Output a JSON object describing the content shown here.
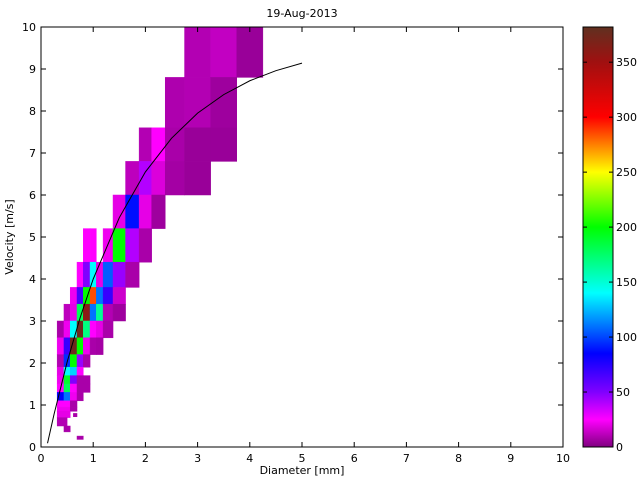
{
  "chart_data": {
    "type": "heatmap",
    "title": "19-Aug-2013",
    "xlabel": "Diameter [mm]",
    "ylabel": "Velocity [m/s]",
    "xlim": [
      0,
      10
    ],
    "ylim": [
      0,
      10
    ],
    "xticks": [
      "0",
      "1",
      "2",
      "3",
      "4",
      "5",
      "6",
      "7",
      "8",
      "9",
      "10"
    ],
    "yticks": [
      "0",
      "1",
      "2",
      "3",
      "4",
      "5",
      "6",
      "7",
      "8",
      "9",
      "10"
    ],
    "grid": false,
    "colorbar": {
      "range": [
        0,
        382
      ],
      "ticks": [
        "0",
        "50",
        "100",
        "150",
        "200",
        "250",
        "300",
        "350"
      ],
      "tick_values": [
        0,
        50,
        100,
        150,
        200,
        250,
        300,
        350
      ],
      "colormap": [
        [
          0,
          "#800080"
        ],
        [
          25,
          "#ff00ff"
        ],
        [
          50,
          "#8000ff"
        ],
        [
          85,
          "#0000ff"
        ],
        [
          140,
          "#00ffff"
        ],
        [
          200,
          "#00ff00"
        ],
        [
          250,
          "#ffff00"
        ],
        [
          300,
          "#ff0000"
        ],
        [
          350,
          "#a01010"
        ],
        [
          382,
          "#603020"
        ]
      ]
    },
    "cells_format": [
      "d_min",
      "d_max",
      "v_min",
      "v_max",
      "count"
    ],
    "cells": [
      [
        2.75,
        3.25,
        8.8,
        10,
        10
      ],
      [
        3.25,
        3.75,
        8.8,
        10,
        13
      ],
      [
        3.75,
        4.25,
        8.8,
        10,
        5
      ],
      [
        2.38,
        2.75,
        7.6,
        8.8,
        9
      ],
      [
        2.75,
        3.25,
        7.6,
        8.8,
        10
      ],
      [
        3.25,
        3.75,
        7.6,
        8.8,
        6
      ],
      [
        1.88,
        2.12,
        6.8,
        7.6,
        10
      ],
      [
        2.12,
        2.38,
        6.8,
        7.6,
        25
      ],
      [
        2.38,
        2.75,
        6.8,
        7.6,
        8
      ],
      [
        2.75,
        3.25,
        6.8,
        7.6,
        5
      ],
      [
        3.25,
        3.75,
        6.8,
        7.6,
        5
      ],
      [
        1.62,
        1.88,
        6.0,
        6.8,
        12
      ],
      [
        1.88,
        2.12,
        6.0,
        6.8,
        40
      ],
      [
        2.12,
        2.38,
        6.0,
        6.8,
        18
      ],
      [
        2.38,
        2.75,
        6.0,
        6.8,
        7
      ],
      [
        2.75,
        3.25,
        6.0,
        6.8,
        5
      ],
      [
        1.38,
        1.62,
        5.2,
        6.0,
        20
      ],
      [
        1.62,
        1.88,
        5.2,
        6.0,
        88
      ],
      [
        1.88,
        2.12,
        5.2,
        6.0,
        20
      ],
      [
        2.12,
        2.38,
        5.2,
        6.0,
        6
      ],
      [
        0.81,
        0.94,
        4.4,
        5.2,
        25
      ],
      [
        0.94,
        1.06,
        4.4,
        5.2,
        25
      ],
      [
        1.19,
        1.38,
        4.4,
        5.2,
        22
      ],
      [
        1.38,
        1.62,
        4.4,
        5.2,
        200
      ],
      [
        1.62,
        1.88,
        4.4,
        5.2,
        40
      ],
      [
        1.88,
        2.12,
        4.4,
        5.2,
        8
      ],
      [
        0.69,
        0.81,
        3.8,
        4.4,
        25
      ],
      [
        0.81,
        0.94,
        3.8,
        4.4,
        50
      ],
      [
        0.94,
        1.06,
        3.8,
        4.4,
        140
      ],
      [
        1.06,
        1.19,
        3.8,
        4.4,
        20
      ],
      [
        1.19,
        1.38,
        3.8,
        4.4,
        105
      ],
      [
        1.38,
        1.62,
        3.8,
        4.4,
        45
      ],
      [
        1.62,
        1.88,
        3.8,
        4.4,
        8
      ],
      [
        0.56,
        0.69,
        3.4,
        3.8,
        22
      ],
      [
        0.69,
        0.81,
        3.4,
        3.8,
        65
      ],
      [
        0.81,
        0.94,
        3.4,
        3.8,
        200
      ],
      [
        0.94,
        1.06,
        3.4,
        3.8,
        285
      ],
      [
        1.06,
        1.19,
        3.4,
        3.8,
        110
      ],
      [
        1.19,
        1.38,
        3.4,
        3.8,
        70
      ],
      [
        1.38,
        1.62,
        3.4,
        3.8,
        15
      ],
      [
        0.44,
        0.56,
        3.0,
        3.4,
        12
      ],
      [
        0.56,
        0.69,
        3.0,
        3.4,
        20
      ],
      [
        0.69,
        0.81,
        3.0,
        3.4,
        180
      ],
      [
        0.81,
        0.94,
        3.0,
        3.4,
        360
      ],
      [
        0.94,
        1.06,
        3.0,
        3.4,
        110
      ],
      [
        1.06,
        1.19,
        3.0,
        3.4,
        165
      ],
      [
        1.19,
        1.38,
        3.0,
        3.4,
        10
      ],
      [
        1.38,
        1.62,
        3.0,
        3.4,
        6
      ],
      [
        0.31,
        0.44,
        2.6,
        3.0,
        8
      ],
      [
        0.44,
        0.56,
        2.6,
        3.0,
        22
      ],
      [
        0.56,
        0.69,
        2.6,
        3.0,
        140
      ],
      [
        0.69,
        0.81,
        2.6,
        3.0,
        375
      ],
      [
        0.81,
        0.94,
        2.6,
        3.0,
        170
      ],
      [
        0.94,
        1.06,
        2.6,
        3.0,
        25
      ],
      [
        1.06,
        1.19,
        2.6,
        3.0,
        20
      ],
      [
        1.19,
        1.38,
        2.6,
        3.0,
        8
      ],
      [
        0.31,
        0.44,
        2.2,
        2.6,
        22
      ],
      [
        0.44,
        0.56,
        2.2,
        2.6,
        70
      ],
      [
        0.56,
        0.69,
        2.2,
        2.6,
        375
      ],
      [
        0.69,
        0.81,
        2.2,
        2.6,
        200
      ],
      [
        0.81,
        0.94,
        2.2,
        2.6,
        22
      ],
      [
        0.94,
        1.06,
        2.2,
        2.6,
        8
      ],
      [
        1.06,
        1.19,
        2.2,
        2.6,
        7
      ],
      [
        0.31,
        0.44,
        1.9,
        2.2,
        10
      ],
      [
        0.44,
        0.56,
        1.9,
        2.2,
        95
      ],
      [
        0.56,
        0.69,
        1.9,
        2.2,
        200
      ],
      [
        0.69,
        0.81,
        1.9,
        2.2,
        45
      ],
      [
        0.81,
        0.94,
        1.9,
        2.2,
        8
      ],
      [
        0.31,
        0.44,
        1.7,
        1.9,
        20
      ],
      [
        0.44,
        0.56,
        1.7,
        1.9,
        140
      ],
      [
        0.56,
        0.69,
        1.7,
        1.9,
        130
      ],
      [
        0.69,
        0.81,
        1.7,
        1.9,
        25
      ],
      [
        0.31,
        0.44,
        1.5,
        1.7,
        22
      ],
      [
        0.44,
        0.56,
        1.5,
        1.7,
        190
      ],
      [
        0.56,
        0.69,
        1.5,
        1.7,
        50
      ],
      [
        0.69,
        0.81,
        1.5,
        1.7,
        8
      ],
      [
        0.81,
        0.94,
        1.5,
        1.7,
        8
      ],
      [
        0.31,
        0.44,
        1.3,
        1.5,
        25
      ],
      [
        0.44,
        0.56,
        1.3,
        1.5,
        180
      ],
      [
        0.56,
        0.69,
        1.3,
        1.5,
        25
      ],
      [
        0.69,
        0.81,
        1.3,
        1.5,
        8
      ],
      [
        0.81,
        0.94,
        1.3,
        1.5,
        8
      ],
      [
        0.31,
        0.44,
        1.1,
        1.3,
        85
      ],
      [
        0.44,
        0.56,
        1.1,
        1.3,
        110
      ],
      [
        0.56,
        0.69,
        1.1,
        1.3,
        22
      ],
      [
        0.69,
        0.81,
        1.1,
        1.3,
        8
      ],
      [
        0.31,
        0.56,
        0.95,
        1.1,
        25
      ],
      [
        0.56,
        0.69,
        0.95,
        1.1,
        8
      ],
      [
        0.31,
        0.56,
        0.85,
        0.95,
        22
      ],
      [
        0.56,
        0.69,
        0.85,
        0.95,
        8
      ],
      [
        0.31,
        0.56,
        0.7,
        0.85,
        20
      ],
      [
        0.62,
        0.69,
        0.72,
        0.8,
        8
      ],
      [
        0.31,
        0.5,
        0.5,
        0.7,
        10
      ],
      [
        0.44,
        0.56,
        0.36,
        0.5,
        8
      ],
      [
        0.69,
        0.81,
        0.18,
        0.26,
        8
      ]
    ],
    "fit_curve": {
      "x": [
        0.125,
        0.25,
        0.5,
        0.75,
        1,
        1.5,
        2,
        2.5,
        3,
        3.5,
        4,
        4.5,
        5
      ],
      "y": [
        0.09,
        0.78,
        2.02,
        3.08,
        4.0,
        5.46,
        6.55,
        7.35,
        7.95,
        8.39,
        8.72,
        8.96,
        9.14
      ]
    }
  }
}
